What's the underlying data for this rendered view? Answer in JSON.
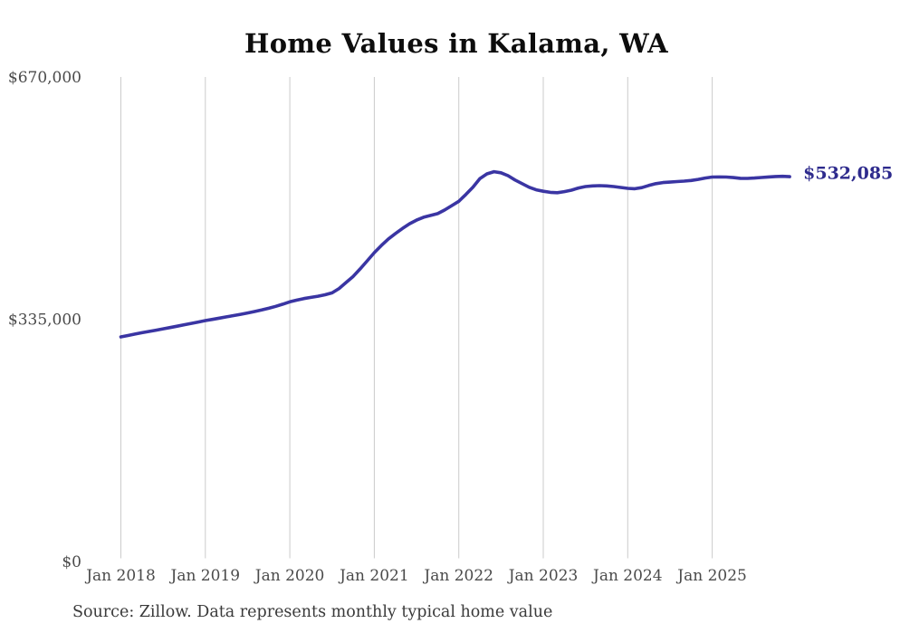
{
  "chart_data": {
    "type": "line",
    "title": "Home Values in Kalama, WA",
    "source": "Source: Zillow. Data represents monthly typical home value",
    "end_label": "$532,085",
    "latest_value": 532085,
    "x_start": "Jan 2018",
    "x_end": "Dec 2025",
    "x_tick_labels": [
      "Jan 2018",
      "Jan 2019",
      "Jan 2020",
      "Jan 2021",
      "Jan 2022",
      "Jan 2023",
      "Jan 2024",
      "Jan 2025"
    ],
    "y_ticks": [
      0,
      335000,
      670000
    ],
    "y_tick_labels": [
      "$0",
      "$335,000",
      "$670,000"
    ],
    "ylim": [
      0,
      670000
    ],
    "grid": "vertical-years-only",
    "legend": "none",
    "line_color": "#3a35a3",
    "end_label_color": "#2e2b8d",
    "grid_color": "#cbcbcb",
    "axis_text_color": "#4a4a4a",
    "values_unit": "USD, monthly typical home value",
    "values": [
      310600,
      312500,
      314400,
      316300,
      318100,
      319900,
      321700,
      323500,
      325400,
      327300,
      329200,
      331100,
      333100,
      334800,
      336500,
      338200,
      340000,
      341800,
      343700,
      345700,
      347800,
      350200,
      352800,
      355800,
      359000,
      361400,
      363500,
      365200,
      366800,
      368800,
      371500,
      377500,
      385800,
      394200,
      404600,
      415800,
      427000,
      437000,
      446000,
      453500,
      460500,
      467000,
      472000,
      476000,
      478500,
      481000,
      486000,
      492000,
      498000,
      507500,
      517500,
      529500,
      536000,
      539000,
      537500,
      533500,
      527500,
      522500,
      517500,
      514000,
      512000,
      510500,
      510000,
      511500,
      513500,
      516500,
      518500,
      519300,
      519700,
      519300,
      518500,
      517200,
      516000,
      515400,
      517000,
      520000,
      522500,
      524000,
      524600,
      525300,
      526000,
      526800,
      528400,
      530300,
      531600,
      531800,
      531600,
      530900,
      529900,
      529700,
      530300,
      531000,
      531800,
      532400,
      532600,
      532085
    ]
  }
}
